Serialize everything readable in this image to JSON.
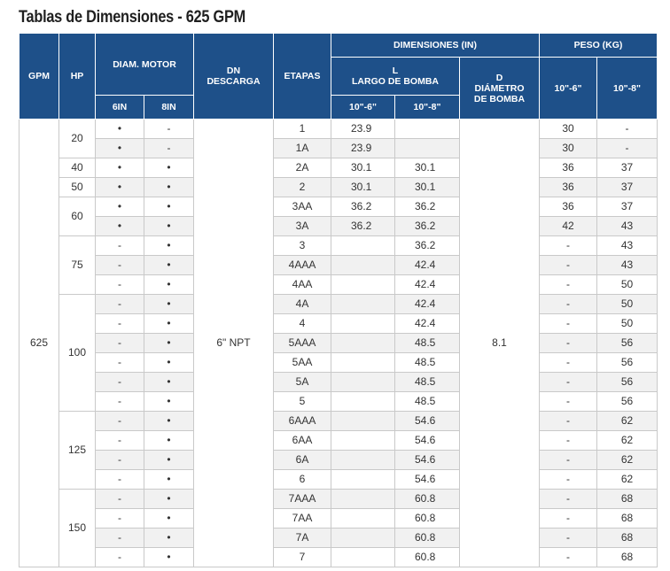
{
  "title": "Tablas de Dimensiones - 625 GPM",
  "headers": {
    "gpm": "GPM",
    "hp": "HP",
    "diam_motor": "DIAM. MOTOR",
    "motor_6in": "6IN",
    "motor_8in": "8IN",
    "dn": "DN",
    "descarga": "DESCARGA",
    "etapas": "ETAPAS",
    "dimensiones": "DIMENSIONES (IN)",
    "l_letter": "L",
    "largo": "LARGO DE BOMBA",
    "largo_6": "10\"-6\"",
    "largo_8": "10\"-8\"",
    "d_letter": "D",
    "diametro": "DIÁMETRO",
    "de_bomba": "DE BOMBA",
    "peso": "PESO (KG)",
    "peso_6": "10\"-6\"",
    "peso_8": "10\"-8\""
  },
  "merged": {
    "gpm": "625",
    "dn": "6\" NPT",
    "diametro": "8.1"
  },
  "hp_groups": [
    {
      "hp": "20",
      "rows": 2
    },
    {
      "hp": "40",
      "rows": 1
    },
    {
      "hp": "50",
      "rows": 1
    },
    {
      "hp": "60",
      "rows": 2
    },
    {
      "hp": "75",
      "rows": 3
    },
    {
      "hp": "100",
      "rows": 6
    },
    {
      "hp": "125",
      "rows": 4
    },
    {
      "hp": "150",
      "rows": 4
    }
  ],
  "rows": [
    {
      "m6": "•",
      "m8": "-",
      "etapas": "1",
      "l6": "23.9",
      "l8": "",
      "p6": "30",
      "p8": "-"
    },
    {
      "m6": "•",
      "m8": "-",
      "etapas": "1A",
      "l6": "23.9",
      "l8": "",
      "p6": "30",
      "p8": "-"
    },
    {
      "m6": "•",
      "m8": "•",
      "etapas": "2A",
      "l6": "30.1",
      "l8": "30.1",
      "p6": "36",
      "p8": "37"
    },
    {
      "m6": "•",
      "m8": "•",
      "etapas": "2",
      "l6": "30.1",
      "l8": "30.1",
      "p6": "36",
      "p8": "37"
    },
    {
      "m6": "•",
      "m8": "•",
      "etapas": "3AA",
      "l6": "36.2",
      "l8": "36.2",
      "p6": "36",
      "p8": "37"
    },
    {
      "m6": "•",
      "m8": "•",
      "etapas": "3A",
      "l6": "36.2",
      "l8": "36.2",
      "p6": "42",
      "p8": "43"
    },
    {
      "m6": "-",
      "m8": "•",
      "etapas": "3",
      "l6": "",
      "l8": "36.2",
      "p6": "-",
      "p8": "43"
    },
    {
      "m6": "-",
      "m8": "•",
      "etapas": "4AAA",
      "l6": "",
      "l8": "42.4",
      "p6": "-",
      "p8": "43"
    },
    {
      "m6": "-",
      "m8": "•",
      "etapas": "4AA",
      "l6": "",
      "l8": "42.4",
      "p6": "-",
      "p8": "50"
    },
    {
      "m6": "-",
      "m8": "•",
      "etapas": "4A",
      "l6": "",
      "l8": "42.4",
      "p6": "-",
      "p8": "50"
    },
    {
      "m6": "-",
      "m8": "•",
      "etapas": "4",
      "l6": "",
      "l8": "42.4",
      "p6": "-",
      "p8": "50"
    },
    {
      "m6": "-",
      "m8": "•",
      "etapas": "5AAA",
      "l6": "",
      "l8": "48.5",
      "p6": "-",
      "p8": "56"
    },
    {
      "m6": "-",
      "m8": "•",
      "etapas": "5AA",
      "l6": "",
      "l8": "48.5",
      "p6": "-",
      "p8": "56"
    },
    {
      "m6": "-",
      "m8": "•",
      "etapas": "5A",
      "l6": "",
      "l8": "48.5",
      "p6": "-",
      "p8": "56"
    },
    {
      "m6": "-",
      "m8": "•",
      "etapas": "5",
      "l6": "",
      "l8": "48.5",
      "p6": "-",
      "p8": "56"
    },
    {
      "m6": "-",
      "m8": "•",
      "etapas": "6AAA",
      "l6": "",
      "l8": "54.6",
      "p6": "-",
      "p8": "62"
    },
    {
      "m6": "-",
      "m8": "•",
      "etapas": "6AA",
      "l6": "",
      "l8": "54.6",
      "p6": "-",
      "p8": "62"
    },
    {
      "m6": "-",
      "m8": "•",
      "etapas": "6A",
      "l6": "",
      "l8": "54.6",
      "p6": "-",
      "p8": "62"
    },
    {
      "m6": "-",
      "m8": "•",
      "etapas": "6",
      "l6": "",
      "l8": "54.6",
      "p6": "-",
      "p8": "62"
    },
    {
      "m6": "-",
      "m8": "•",
      "etapas": "7AAA",
      "l6": "",
      "l8": "60.8",
      "p6": "-",
      "p8": "68"
    },
    {
      "m6": "-",
      "m8": "•",
      "etapas": "7AA",
      "l6": "",
      "l8": "60.8",
      "p6": "-",
      "p8": "68"
    },
    {
      "m6": "-",
      "m8": "•",
      "etapas": "7A",
      "l6": "",
      "l8": "60.8",
      "p6": "-",
      "p8": "68"
    },
    {
      "m6": "-",
      "m8": "•",
      "etapas": "7",
      "l6": "",
      "l8": "60.8",
      "p6": "-",
      "p8": "68"
    }
  ]
}
